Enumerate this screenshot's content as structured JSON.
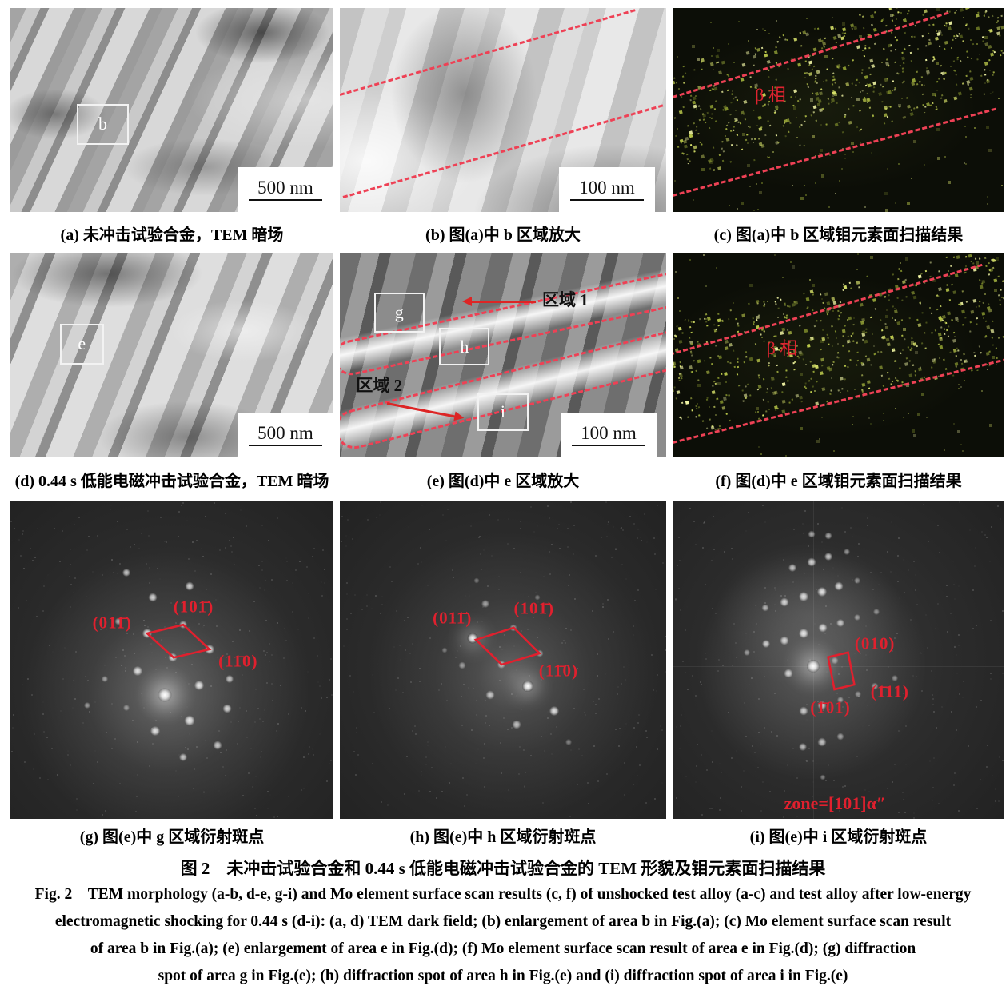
{
  "panels": {
    "a": {
      "caption": "(a) 未冲击试验合金，TEM 暗场",
      "scale_bar": "500 nm",
      "box_label": "b"
    },
    "b": {
      "caption": "(b) 图(a)中 b 区域放大",
      "scale_bar": "100 nm"
    },
    "c": {
      "caption": "(c) 图(a)中 b 区域钼元素面扫描结果",
      "phase_label": "β 相",
      "speckle_band": {
        "seed": 7,
        "count": 640,
        "alpha": 1
      },
      "speckle_sparse": {
        "seed": 8,
        "count": 150,
        "alpha": 0.5
      }
    },
    "d": {
      "caption": "(d) 0.44 s 低能电磁冲击试验合金，TEM 暗场",
      "scale_bar": "500 nm",
      "box_label": "e"
    },
    "e": {
      "caption": "(e) 图(d)中 e 区域放大",
      "scale_bar": "100 nm",
      "box_labels": {
        "g": "g",
        "h": "h",
        "i": "i"
      },
      "area1": "区域 1",
      "area2": "区域 2"
    },
    "f": {
      "caption": "(f) 图(d)中 e 区域钼元素面扫描结果",
      "phase_label": "β 相",
      "speckle_band": {
        "seed": 13,
        "count": 700,
        "alpha": 1
      },
      "speckle_sparse": {
        "seed": 14,
        "count": 130,
        "alpha": 0.5
      }
    },
    "g": {
      "caption": "(g) 图(e)中 g 区域衍射斑点",
      "label_left": "(011̄)",
      "label_top": "(101̄)",
      "label_right": "(11̄0)",
      "quad": "42.3,41.7 53.5,39.0 61.6,46.7 50.5,49.3",
      "noise": {
        "seed": 21,
        "count": 320,
        "alpha": 0.16
      },
      "spots": [
        [
          36,
          22.5,
          10,
          0.75
        ],
        [
          44,
          30.5,
          11,
          0.8
        ],
        [
          55.5,
          27,
          11,
          0.8
        ],
        [
          33.5,
          38,
          9,
          0.6
        ],
        [
          42.3,
          41.7,
          12,
          0.9
        ],
        [
          53.5,
          39,
          10,
          0.7
        ],
        [
          61.6,
          46.7,
          12,
          0.85
        ],
        [
          50.3,
          49.3,
          11,
          0.8
        ],
        [
          39.4,
          53.5,
          12,
          0.85
        ],
        [
          29.2,
          56,
          8,
          0.5
        ],
        [
          47.8,
          61,
          17,
          1
        ],
        [
          58.4,
          58,
          12,
          0.9
        ],
        [
          67.8,
          56,
          10,
          0.7
        ],
        [
          23.8,
          64.3,
          8,
          0.5
        ],
        [
          44.8,
          72.4,
          12,
          0.85
        ],
        [
          55.4,
          69,
          13,
          0.9
        ],
        [
          67,
          65.3,
          11,
          0.8
        ],
        [
          64,
          77,
          11,
          0.75
        ],
        [
          53.5,
          80.7,
          10,
          0.7
        ],
        [
          36,
          65,
          8,
          0.45
        ]
      ]
    },
    "h": {
      "caption": "(h) 图(e)中 h 区域衍射斑点",
      "label_left": "(011̄)",
      "label_top": "(101̄)",
      "label_right": "(11̄0)",
      "quad": "41.7,43.7 53.3,39.9 61.2,48.0 49.6,51.5",
      "noise": {
        "seed": 22,
        "count": 320,
        "alpha": 0.15
      },
      "spots": [
        [
          44.6,
          32.4,
          10,
          0.55
        ],
        [
          40.7,
          43.2,
          13,
          0.95
        ],
        [
          53.3,
          39.9,
          9,
          0.5
        ],
        [
          61.2,
          48,
          9,
          0.55
        ],
        [
          49.6,
          51.5,
          10,
          0.65
        ],
        [
          37.6,
          51.8,
          9,
          0.5
        ],
        [
          57.5,
          58.3,
          14,
          1
        ],
        [
          46.1,
          61.1,
          11,
          0.7
        ],
        [
          65.6,
          66.1,
          12,
          0.85
        ],
        [
          54.1,
          70.4,
          11,
          0.7
        ],
        [
          32,
          47,
          7,
          0.35
        ],
        [
          60.5,
          30.5,
          7,
          0.35
        ],
        [
          70,
          76,
          8,
          0.4
        ],
        [
          42,
          25,
          7,
          0.35
        ]
      ]
    },
    "i": {
      "caption": "(i) 图(e)中 i 区域衍射斑点",
      "label_top": "(010)",
      "label_right": "(1̄11)",
      "label_bottom": "(1̄01)",
      "zone_label": "zone=[101]α″",
      "quad": "46.9,49.2 52.9,47.7 54.8,57.8 48.8,59.3",
      "noise": {
        "seed": 23,
        "count": 340,
        "alpha": 0.15
      },
      "spots": [
        [
          41.9,
          10.6,
          9,
          0.6
        ],
        [
          47.1,
          11.1,
          9,
          0.6
        ],
        [
          36.2,
          21.1,
          10,
          0.7
        ],
        [
          41.9,
          19.3,
          11,
          0.8
        ],
        [
          47.1,
          17.6,
          10,
          0.75
        ],
        [
          52.5,
          16,
          8,
          0.5
        ],
        [
          27.9,
          33.7,
          9,
          0.6
        ],
        [
          33.8,
          31.9,
          11,
          0.8
        ],
        [
          39.5,
          30.2,
          12,
          0.85
        ],
        [
          45,
          28.6,
          12,
          0.85
        ],
        [
          50.2,
          26.9,
          11,
          0.8
        ],
        [
          55.7,
          25.2,
          8,
          0.45
        ],
        [
          22.4,
          47.7,
          8,
          0.5
        ],
        [
          28.3,
          45,
          10,
          0.75
        ],
        [
          33.8,
          43.9,
          11,
          0.8
        ],
        [
          39.5,
          41.7,
          12,
          0.9
        ],
        [
          45.2,
          40,
          11,
          0.8
        ],
        [
          50.5,
          38.4,
          10,
          0.7
        ],
        [
          55.7,
          36.7,
          8,
          0.5
        ],
        [
          61.4,
          34.9,
          8,
          0.45
        ],
        [
          34.9,
          54.3,
          11,
          0.8
        ],
        [
          42.4,
          52,
          16,
          1
        ],
        [
          48.8,
          50.2,
          9,
          0.5
        ],
        [
          66.9,
          55.8,
          8,
          0.45
        ],
        [
          61,
          58.3,
          9,
          0.5
        ],
        [
          39.5,
          66.1,
          11,
          0.75
        ],
        [
          45,
          64.3,
          11,
          0.75
        ],
        [
          50.5,
          62.5,
          8,
          0.5
        ],
        [
          56,
          60.7,
          8,
          0.45
        ],
        [
          39.3,
          77.4,
          10,
          0.65
        ],
        [
          45,
          75.9,
          11,
          0.7
        ],
        [
          50.5,
          74.1,
          9,
          0.55
        ],
        [
          45.3,
          87,
          7,
          0.4
        ]
      ]
    }
  },
  "mo_dot_colors": [
    "#d9e36b",
    "#bcca4b",
    "#9aa93a",
    "#eff3a3",
    "#87962e"
  ],
  "accent_red": "#e0202e",
  "figure_caption": {
    "cn": "图 2　未冲击试验合金和 0.44 s 低能电磁冲击试验合金的 TEM 形貌及钼元素面扫描结果",
    "en_lines": [
      "Fig. 2　TEM morphology (a-b, d-e, g-i) and Mo element surface scan results (c, f) of unshocked test alloy (a-c) and test alloy after low-energy",
      "electromagnetic shocking for 0.44 s (d-i): (a, d) TEM dark field; (b) enlargement of area b in Fig.(a); (c) Mo element surface scan result",
      "of area b in Fig.(a); (e) enlargement of area e in Fig.(d); (f) Mo element surface scan result of area e in Fig.(d); (g) diffraction",
      "spot of area g in Fig.(e); (h) diffraction spot of area h in Fig.(e) and (i) diffraction spot of area i in Fig.(e)"
    ]
  }
}
